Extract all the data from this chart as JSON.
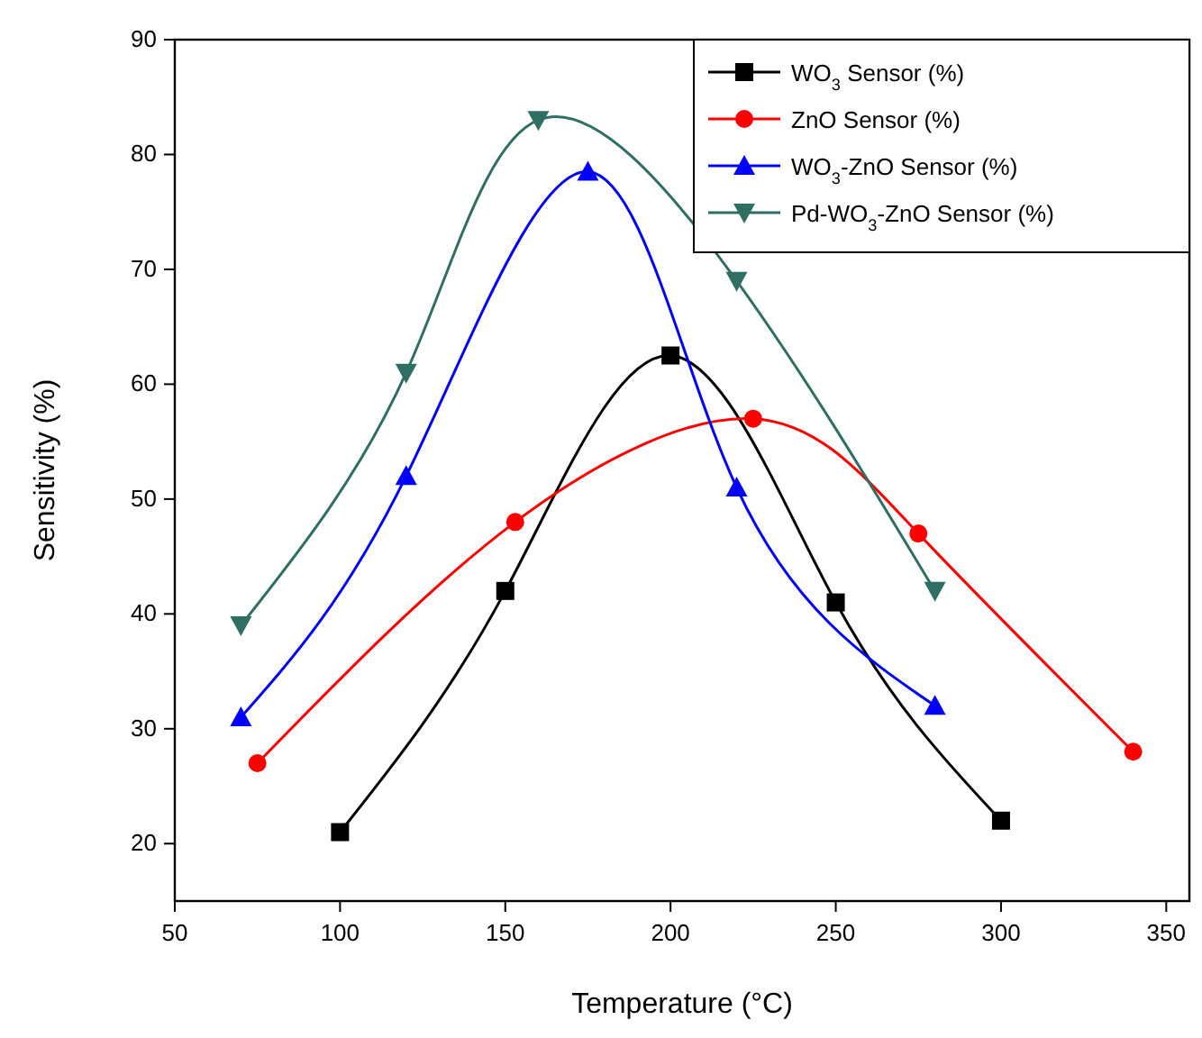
{
  "chart_data": {
    "type": "line",
    "xlabel": "Temperature (°C)",
    "ylabel": "Sensitivity (%)",
    "xlim": [
      50,
      357
    ],
    "xticks": [
      50,
      100,
      150,
      200,
      250,
      300,
      350
    ],
    "ylim": [
      15,
      90
    ],
    "yticks": [
      20,
      30,
      40,
      50,
      60,
      70,
      80,
      90
    ],
    "grid": false,
    "legend": "top right",
    "line_style": "solid",
    "series": [
      {
        "name": "WO$_{3}$ Sensor (%)",
        "color": "#000000",
        "marker": "square",
        "x": [
          100,
          150,
          200,
          250,
          300
        ],
        "values": [
          21,
          42,
          62.5,
          41,
          22
        ]
      },
      {
        "name": "ZnO Sensor (%)",
        "color": "#ff0000",
        "marker": "circle",
        "x": [
          75,
          153,
          225,
          275,
          340
        ],
        "values": [
          27,
          48,
          57,
          47,
          28
        ]
      },
      {
        "name": "WO$_{3}$-ZnO Sensor (%)",
        "color": "#0000ff",
        "marker": "triangle",
        "x": [
          70,
          120,
          175,
          220,
          280
        ],
        "values": [
          31,
          52,
          78.5,
          51,
          32
        ]
      },
      {
        "name": "Pd-WO$_{3}$-ZnO Sensor (%)",
        "color": "#2f6f63",
        "marker": "triangle-down",
        "x": [
          70,
          120,
          160,
          220,
          280
        ],
        "values": [
          39,
          61,
          83,
          69,
          42
        ]
      }
    ]
  }
}
